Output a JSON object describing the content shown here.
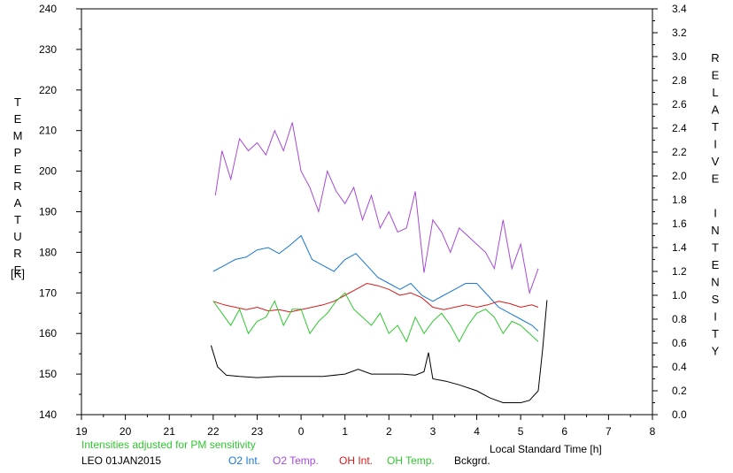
{
  "chart_data": {
    "type": "line",
    "left_axis_label": "TEMPERATURE",
    "left_axis_unit": "[K]",
    "right_axis_label": "RELATIVE INTENSITY",
    "xlabel": "Local Standard Time [h]",
    "note": "Intensities adjusted for PM sensitivity",
    "station": "LEO 01JAN2015",
    "x_ticks": [
      "19",
      "20",
      "21",
      "22",
      "23",
      "0",
      "1",
      "2",
      "3",
      "4",
      "5",
      "6",
      "7",
      "8"
    ],
    "x_range": [
      19,
      32
    ],
    "y_left_range": [
      140,
      240
    ],
    "y_left_ticks": [
      "140",
      "150",
      "160",
      "170",
      "180",
      "190",
      "200",
      "210",
      "220",
      "230",
      "240"
    ],
    "y_right_range": [
      0.0,
      3.4
    ],
    "y_right_ticks": [
      "0.0",
      "0.2",
      "0.4",
      "0.6",
      "0.8",
      "1.0",
      "1.2",
      "1.4",
      "1.6",
      "1.8",
      "2.0",
      "2.2",
      "2.4",
      "2.6",
      "2.8",
      "3.0",
      "3.2",
      "3.4"
    ],
    "grid": false,
    "legend_position": "bottom",
    "colors": {
      "o2_int": "#1a78d6",
      "o2_temp": "#a64ad6",
      "oh_int": "#d61a1a",
      "oh_temp": "#2ec82e",
      "bckgrd": "#000000",
      "note": "#2ec82e"
    },
    "series": [
      {
        "name": "O2 Int.",
        "axis": "right",
        "color_key": "o2_int",
        "x": [
          22.0,
          22.25,
          22.5,
          22.75,
          23.0,
          23.25,
          23.5,
          23.75,
          24.0,
          24.25,
          24.5,
          24.75,
          25.0,
          25.25,
          25.5,
          25.75,
          26.0,
          26.25,
          26.5,
          26.75,
          27.0,
          27.25,
          27.5,
          27.75,
          28.0,
          28.25,
          28.5,
          28.75,
          29.0,
          29.25,
          29.4
        ],
        "y": [
          1.2,
          1.25,
          1.3,
          1.32,
          1.38,
          1.4,
          1.35,
          1.42,
          1.5,
          1.3,
          1.25,
          1.2,
          1.3,
          1.35,
          1.25,
          1.15,
          1.1,
          1.05,
          1.1,
          1.0,
          0.95,
          1.0,
          1.05,
          1.1,
          1.1,
          1.0,
          0.9,
          0.85,
          0.8,
          0.75,
          0.7
        ]
      },
      {
        "name": "O2 Temp.",
        "axis": "left",
        "color_key": "o2_temp",
        "x": [
          22.05,
          22.2,
          22.4,
          22.6,
          22.8,
          23.0,
          23.2,
          23.4,
          23.6,
          23.8,
          24.0,
          24.2,
          24.4,
          24.6,
          24.8,
          25.0,
          25.2,
          25.4,
          25.6,
          25.8,
          26.0,
          26.2,
          26.4,
          26.6,
          26.8,
          27.0,
          27.2,
          27.4,
          27.6,
          27.8,
          28.0,
          28.2,
          28.4,
          28.6,
          28.8,
          29.0,
          29.2,
          29.4
        ],
        "y": [
          194,
          205,
          198,
          208,
          205,
          207,
          204,
          210,
          205,
          212,
          200,
          196,
          190,
          200,
          195,
          192,
          196,
          188,
          194,
          186,
          190,
          185,
          186,
          195,
          175,
          188,
          185,
          180,
          186,
          184,
          182,
          180,
          176,
          188,
          176,
          182,
          170,
          176
        ]
      },
      {
        "name": "OH Int.",
        "axis": "right",
        "color_key": "oh_int",
        "x": [
          22.0,
          22.25,
          22.5,
          22.75,
          23.0,
          23.25,
          23.5,
          23.75,
          24.0,
          24.25,
          24.5,
          24.75,
          25.0,
          25.25,
          25.5,
          25.75,
          26.0,
          26.25,
          26.5,
          26.75,
          27.0,
          27.25,
          27.5,
          27.75,
          28.0,
          28.25,
          28.5,
          28.75,
          29.0,
          29.25,
          29.4
        ],
        "y": [
          0.95,
          0.92,
          0.9,
          0.88,
          0.9,
          0.87,
          0.88,
          0.86,
          0.88,
          0.9,
          0.92,
          0.95,
          1.0,
          1.05,
          1.1,
          1.08,
          1.05,
          1.0,
          1.02,
          0.98,
          0.9,
          0.88,
          0.9,
          0.92,
          0.9,
          0.92,
          0.95,
          0.93,
          0.9,
          0.92,
          0.9
        ]
      },
      {
        "name": "OH Temp.",
        "axis": "left",
        "color_key": "oh_temp",
        "x": [
          22.0,
          22.2,
          22.4,
          22.6,
          22.8,
          23.0,
          23.2,
          23.4,
          23.6,
          23.8,
          24.0,
          24.2,
          24.4,
          24.6,
          24.8,
          25.0,
          25.2,
          25.4,
          25.6,
          25.8,
          26.0,
          26.2,
          26.4,
          26.6,
          26.8,
          27.0,
          27.2,
          27.4,
          27.6,
          27.8,
          28.0,
          28.2,
          28.4,
          28.6,
          28.8,
          29.0,
          29.2,
          29.4
        ],
        "y": [
          168,
          165,
          162,
          166,
          160,
          163,
          164,
          168,
          162,
          166,
          166,
          160,
          163,
          165,
          168,
          170,
          166,
          164,
          162,
          165,
          160,
          162,
          158,
          164,
          160,
          163,
          165,
          162,
          158,
          162,
          165,
          166,
          164,
          160,
          163,
          162,
          160,
          158
        ]
      },
      {
        "name": "Bckgrd.",
        "axis": "right",
        "color_key": "bckgrd",
        "x": [
          21.95,
          22.1,
          22.3,
          22.6,
          23.0,
          23.5,
          24.0,
          24.5,
          25.0,
          25.3,
          25.6,
          26.0,
          26.3,
          26.6,
          26.8,
          26.9,
          27.0,
          27.3,
          27.6,
          28.0,
          28.3,
          28.6,
          29.0,
          29.2,
          29.4,
          29.5,
          29.6
        ],
        "y": [
          0.58,
          0.4,
          0.33,
          0.32,
          0.31,
          0.32,
          0.32,
          0.32,
          0.34,
          0.38,
          0.34,
          0.34,
          0.34,
          0.33,
          0.36,
          0.52,
          0.3,
          0.28,
          0.25,
          0.2,
          0.14,
          0.1,
          0.1,
          0.12,
          0.2,
          0.55,
          0.96
        ]
      }
    ]
  }
}
